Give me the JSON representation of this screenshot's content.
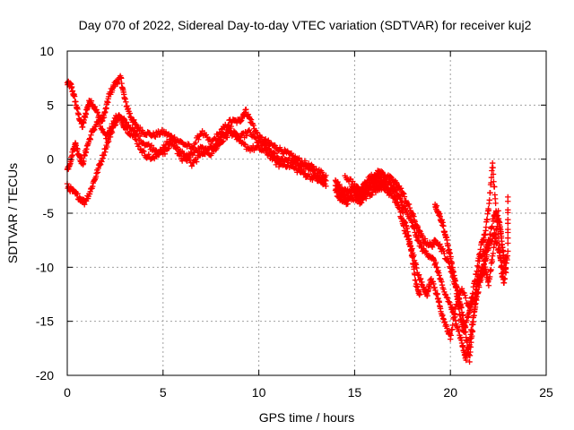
{
  "chart_data": {
    "type": "scatter",
    "title": "Day 070 of 2022, Sidereal Day-to-day VTEC variation (SDTVAR) for receiver kuj2",
    "xlabel": "GPS time / hours",
    "ylabel": "SDTVAR / TECUs",
    "xlim": [
      0,
      25
    ],
    "ylim": [
      -20,
      10
    ],
    "xticks": [
      0,
      5,
      10,
      15,
      20,
      25
    ],
    "yticks": [
      -20,
      -15,
      -10,
      -5,
      0,
      5,
      10
    ],
    "grid": true,
    "marker": "+",
    "series": [
      {
        "name": "SDTVAR",
        "color": "#ff0000",
        "traces": [
          [
            [
              0.0,
              7.0
            ],
            [
              0.2,
              6.8
            ],
            [
              0.4,
              5.5
            ],
            [
              0.6,
              4.0
            ],
            [
              0.8,
              3.0
            ],
            [
              1.0,
              4.5
            ],
            [
              1.2,
              5.5
            ],
            [
              1.5,
              4.5
            ],
            [
              1.8,
              3.5
            ],
            [
              2.0,
              4.5
            ],
            [
              2.2,
              6.0
            ],
            [
              2.5,
              7.0
            ],
            [
              2.8,
              7.5
            ],
            [
              3.0,
              5.5
            ],
            [
              3.3,
              4.0
            ],
            [
              3.6,
              3.0
            ],
            [
              4.0,
              2.5
            ],
            [
              4.5,
              2.2
            ],
            [
              5.0,
              2.5
            ],
            [
              5.5,
              2.0
            ],
            [
              6.0,
              1.5
            ],
            [
              6.5,
              1.0
            ],
            [
              7.0,
              2.5
            ],
            [
              7.5,
              1.5
            ],
            [
              8.0,
              2.5
            ],
            [
              8.5,
              3.5
            ],
            [
              9.0,
              3.5
            ],
            [
              9.3,
              4.5
            ],
            [
              9.6,
              3.5
            ],
            [
              10.0,
              2.0
            ],
            [
              10.5,
              1.5
            ],
            [
              11.0,
              1.0
            ],
            [
              11.5,
              0.5
            ],
            [
              12.0,
              0.0
            ],
            [
              12.5,
              -0.5
            ],
            [
              13.0,
              -1.0
            ],
            [
              13.5,
              -1.5
            ]
          ],
          [
            [
              0.0,
              -1.0
            ],
            [
              0.2,
              0.0
            ],
            [
              0.4,
              1.5
            ],
            [
              0.6,
              0.5
            ],
            [
              0.8,
              -0.5
            ],
            [
              1.0,
              1.0
            ],
            [
              1.3,
              2.5
            ],
            [
              1.6,
              3.5
            ],
            [
              2.0,
              2.0
            ],
            [
              2.3,
              3.0
            ],
            [
              2.6,
              4.0
            ],
            [
              3.0,
              3.5
            ],
            [
              3.5,
              2.5
            ],
            [
              4.0,
              1.5
            ],
            [
              4.5,
              1.0
            ],
            [
              5.0,
              0.5
            ],
            [
              5.5,
              1.5
            ],
            [
              6.0,
              0.0
            ],
            [
              6.5,
              0.5
            ],
            [
              7.0,
              1.0
            ],
            [
              7.5,
              0.5
            ],
            [
              8.0,
              1.5
            ],
            [
              8.5,
              2.5
            ],
            [
              9.0,
              2.0
            ],
            [
              9.5,
              2.5
            ],
            [
              10.0,
              1.5
            ],
            [
              10.5,
              1.0
            ],
            [
              11.0,
              0.0
            ],
            [
              11.5,
              0.0
            ],
            [
              12.0,
              -0.5
            ],
            [
              12.5,
              -0.8
            ],
            [
              13.0,
              -1.5
            ],
            [
              13.5,
              -2.0
            ]
          ],
          [
            [
              0.0,
              -2.5
            ],
            [
              0.3,
              -3.0
            ],
            [
              0.6,
              -3.5
            ],
            [
              0.9,
              -4.0
            ],
            [
              1.2,
              -3.0
            ],
            [
              1.5,
              -1.5
            ],
            [
              1.8,
              0.0
            ],
            [
              2.1,
              1.5
            ],
            [
              2.4,
              3.0
            ],
            [
              2.7,
              4.0
            ],
            [
              3.0,
              3.0
            ],
            [
              3.5,
              2.0
            ],
            [
              4.0,
              0.5
            ],
            [
              4.5,
              0.0
            ],
            [
              5.0,
              1.0
            ],
            [
              5.5,
              2.0
            ],
            [
              6.0,
              0.5
            ],
            [
              6.5,
              -0.5
            ],
            [
              7.0,
              0.5
            ],
            [
              7.5,
              1.0
            ],
            [
              8.0,
              2.0
            ],
            [
              8.5,
              3.0
            ],
            [
              9.0,
              1.5
            ],
            [
              9.5,
              1.0
            ],
            [
              10.0,
              1.0
            ],
            [
              10.5,
              0.5
            ],
            [
              11.0,
              -0.5
            ],
            [
              11.5,
              -0.5
            ],
            [
              12.0,
              -1.0
            ],
            [
              12.5,
              -1.5
            ],
            [
              13.0,
              -1.8
            ],
            [
              13.5,
              -2.5
            ]
          ],
          [
            [
              14.0,
              -2.0
            ],
            [
              14.3,
              -2.8
            ],
            [
              14.6,
              -3.0
            ],
            [
              15.0,
              -2.5
            ],
            [
              15.3,
              -3.0
            ],
            [
              15.6,
              -2.0
            ],
            [
              16.0,
              -1.5
            ],
            [
              16.3,
              -1.2
            ],
            [
              16.6,
              -1.5
            ],
            [
              17.0,
              -2.0
            ],
            [
              17.3,
              -2.5
            ],
            [
              17.6,
              -3.5
            ],
            [
              18.0,
              -5.0
            ],
            [
              18.3,
              -6.5
            ],
            [
              18.6,
              -7.5
            ],
            [
              19.0,
              -8.0
            ],
            [
              19.3,
              -7.5
            ],
            [
              19.6,
              -8.5
            ],
            [
              20.0,
              -10.0
            ],
            [
              20.3,
              -12.0
            ],
            [
              20.5,
              -14.5
            ],
            [
              20.7,
              -16.0
            ],
            [
              21.0,
              -14.0
            ],
            [
              21.2,
              -12.0
            ],
            [
              21.5,
              -9.0
            ],
            [
              21.8,
              -8.5
            ],
            [
              22.0,
              -7.5
            ],
            [
              22.3,
              -5.0
            ],
            [
              22.6,
              -6.0
            ],
            [
              22.8,
              -9.5
            ]
          ],
          [
            [
              14.0,
              -2.5
            ],
            [
              14.3,
              -3.3
            ],
            [
              14.6,
              -3.6
            ],
            [
              15.0,
              -3.0
            ],
            [
              15.3,
              -3.5
            ],
            [
              15.6,
              -2.5
            ],
            [
              16.0,
              -2.0
            ],
            [
              16.3,
              -1.8
            ],
            [
              16.6,
              -2.0
            ],
            [
              17.0,
              -2.5
            ],
            [
              17.3,
              -3.5
            ],
            [
              17.6,
              -4.5
            ],
            [
              18.0,
              -6.0
            ],
            [
              18.3,
              -7.5
            ],
            [
              18.6,
              -8.5
            ],
            [
              19.0,
              -9.0
            ],
            [
              19.3,
              -10.0
            ],
            [
              19.6,
              -12.0
            ],
            [
              20.0,
              -13.5
            ],
            [
              20.3,
              -15.0
            ],
            [
              20.6,
              -17.0
            ],
            [
              20.8,
              -18.5
            ],
            [
              21.0,
              -17.0
            ],
            [
              21.2,
              -14.5
            ],
            [
              21.4,
              -12.5
            ],
            [
              21.6,
              -11.0
            ],
            [
              21.8,
              -10.0
            ],
            [
              22.0,
              -11.5
            ],
            [
              22.2,
              -9.0
            ],
            [
              22.5,
              -5.0
            ],
            [
              22.7,
              -8.0
            ],
            [
              22.9,
              -10.5
            ]
          ],
          [
            [
              14.0,
              -3.0
            ],
            [
              14.3,
              -3.8
            ],
            [
              14.6,
              -4.0
            ],
            [
              15.0,
              -3.5
            ],
            [
              15.3,
              -4.0
            ],
            [
              15.6,
              -3.0
            ],
            [
              16.0,
              -2.5
            ],
            [
              16.3,
              -2.3
            ],
            [
              16.6,
              -2.5
            ],
            [
              17.0,
              -3.0
            ],
            [
              17.3,
              -4.5
            ],
            [
              17.6,
              -6.5
            ],
            [
              18.0,
              -8.5
            ],
            [
              18.3,
              -10.5
            ],
            [
              18.6,
              -12.0
            ],
            [
              18.8,
              -12.5
            ],
            [
              19.0,
              -11.0
            ],
            [
              19.3,
              -12.5
            ],
            [
              19.5,
              -14.0
            ],
            [
              19.8,
              -15.5
            ],
            [
              20.0,
              -16.5
            ],
            [
              20.3,
              -13.5
            ],
            [
              20.6,
              -12.0
            ],
            [
              21.0,
              -14.0
            ],
            [
              21.3,
              -12.5
            ],
            [
              21.6,
              -8.0
            ],
            [
              21.8,
              -7.0
            ],
            [
              22.0,
              -4.5
            ],
            [
              22.2,
              -0.5
            ],
            [
              22.4,
              -5.0
            ],
            [
              22.7,
              -11.0
            ],
            [
              22.9,
              -9.0
            ]
          ],
          [
            [
              14.5,
              -1.5
            ],
            [
              15.0,
              -2.5
            ],
            [
              15.5,
              -3.5
            ],
            [
              16.0,
              -3.0
            ],
            [
              16.5,
              -2.5
            ],
            [
              17.0,
              -3.5
            ],
            [
              17.5,
              -5.0
            ],
            [
              17.8,
              -7.0
            ],
            [
              18.0,
              -9.0
            ],
            [
              18.2,
              -11.5
            ],
            [
              18.4,
              -12.5
            ]
          ],
          [
            [
              19.2,
              -4.2
            ],
            [
              19.4,
              -5.0
            ],
            [
              19.6,
              -6.0
            ],
            [
              19.8,
              -7.5
            ],
            [
              20.0,
              -9.0
            ],
            [
              20.2,
              -11.0
            ],
            [
              20.4,
              -12.5
            ],
            [
              20.6,
              -14.0
            ],
            [
              20.8,
              -16.0
            ],
            [
              21.0,
              -18.5
            ],
            [
              21.2,
              -15.0
            ],
            [
              21.4,
              -11.5
            ],
            [
              21.6,
              -10.5
            ],
            [
              21.8,
              -9.5
            ],
            [
              22.0,
              -8.0
            ],
            [
              22.3,
              -7.0
            ],
            [
              22.6,
              -9.0
            ],
            [
              22.8,
              -11.5
            ],
            [
              23.0,
              -8.5
            ],
            [
              23.0,
              -3.5
            ]
          ]
        ]
      }
    ]
  }
}
